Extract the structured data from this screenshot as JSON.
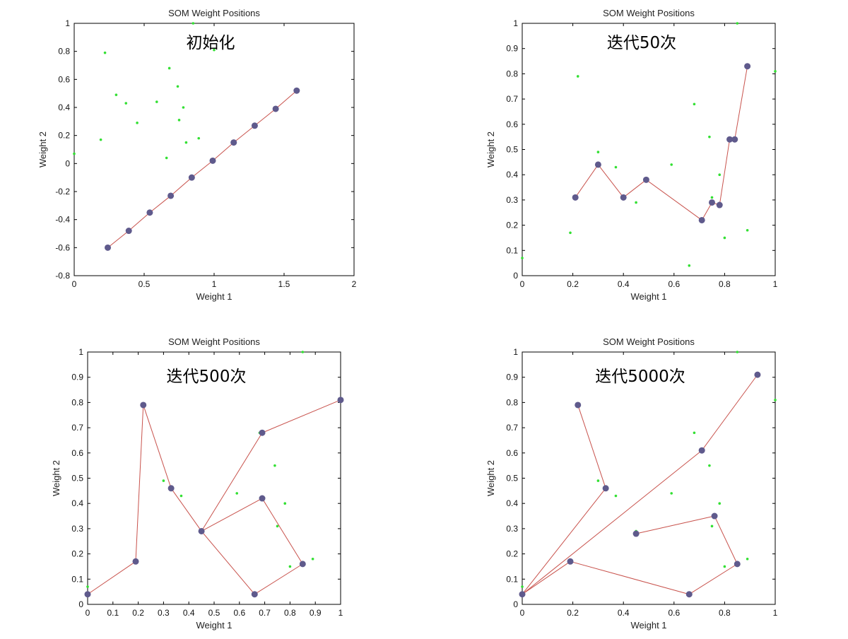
{
  "colors": {
    "node": "#5f5a8c",
    "edge": "#c8524c",
    "sample": "#33e033",
    "axis": "#000000"
  },
  "chart_data": [
    {
      "type": "scatter",
      "title": "SOM Weight Positions",
      "overlay_label": "初始化",
      "xlabel": "Weight 1",
      "ylabel": "Weight 2",
      "xlim": [
        0,
        2
      ],
      "ylim": [
        -0.8,
        1
      ],
      "xticks": [
        "0",
        "0.5",
        "1",
        "1.5",
        "2"
      ],
      "xtick_values": [
        0,
        0.5,
        1,
        1.5,
        2
      ],
      "yticks": [
        "-0.8",
        "-0.6",
        "-0.4",
        "-0.2",
        "0",
        "0.2",
        "0.4",
        "0.6",
        "0.8",
        "1"
      ],
      "ytick_values": [
        -0.8,
        -0.6,
        -0.4,
        -0.2,
        0,
        0.2,
        0.4,
        0.6,
        0.8,
        1
      ],
      "grid": false,
      "samples": [
        [
          0.22,
          0.79
        ],
        [
          0.3,
          0.49
        ],
        [
          0.37,
          0.43
        ],
        [
          0.45,
          0.29
        ],
        [
          0.59,
          0.44
        ],
        [
          0.68,
          0.68
        ],
        [
          0.74,
          0.55
        ],
        [
          0.75,
          0.31
        ],
        [
          0.78,
          0.4
        ],
        [
          0.8,
          0.15
        ],
        [
          0.89,
          0.18
        ],
        [
          0.66,
          0.04
        ],
        [
          0.19,
          0.17
        ],
        [
          0.0,
          0.07
        ],
        [
          0.85,
          1.0
        ],
        [
          1.0,
          0.81
        ]
      ],
      "nodes": [
        [
          0.24,
          -0.6
        ],
        [
          0.39,
          -0.48
        ],
        [
          0.54,
          -0.35
        ],
        [
          0.69,
          -0.23
        ],
        [
          0.84,
          -0.1
        ],
        [
          0.99,
          0.02
        ],
        [
          1.14,
          0.15
        ],
        [
          1.29,
          0.27
        ],
        [
          1.44,
          0.39
        ],
        [
          1.59,
          0.52
        ]
      ],
      "path": [
        [
          0,
          1
        ],
        [
          1,
          2
        ],
        [
          2,
          3
        ],
        [
          3,
          4
        ],
        [
          4,
          5
        ],
        [
          5,
          6
        ],
        [
          6,
          7
        ],
        [
          7,
          8
        ],
        [
          8,
          9
        ]
      ]
    },
    {
      "type": "scatter",
      "title": "SOM Weight Positions",
      "overlay_label": "迭代50次",
      "xlabel": "Weight 1",
      "ylabel": "Weight 2",
      "xlim": [
        0,
        1
      ],
      "ylim": [
        0,
        1
      ],
      "xticks": [
        "0",
        "0.2",
        "0.4",
        "0.6",
        "0.8",
        "1"
      ],
      "xtick_values": [
        0,
        0.2,
        0.4,
        0.6,
        0.8,
        1
      ],
      "yticks": [
        "0",
        "0.1",
        "0.2",
        "0.3",
        "0.4",
        "0.5",
        "0.6",
        "0.7",
        "0.8",
        "0.9",
        "1"
      ],
      "ytick_values": [
        0,
        0.1,
        0.2,
        0.3,
        0.4,
        0.5,
        0.6,
        0.7,
        0.8,
        0.9,
        1
      ],
      "grid": false,
      "samples": [
        [
          0.22,
          0.79
        ],
        [
          0.3,
          0.49
        ],
        [
          0.37,
          0.43
        ],
        [
          0.45,
          0.29
        ],
        [
          0.59,
          0.44
        ],
        [
          0.68,
          0.68
        ],
        [
          0.74,
          0.55
        ],
        [
          0.75,
          0.31
        ],
        [
          0.78,
          0.4
        ],
        [
          0.8,
          0.15
        ],
        [
          0.89,
          0.18
        ],
        [
          0.66,
          0.04
        ],
        [
          0.19,
          0.17
        ],
        [
          0.0,
          0.07
        ],
        [
          0.85,
          1.0
        ],
        [
          1.0,
          0.81
        ]
      ],
      "nodes": [
        [
          0.21,
          0.31
        ],
        [
          0.3,
          0.44
        ],
        [
          0.4,
          0.31
        ],
        [
          0.49,
          0.38
        ],
        [
          0.71,
          0.22
        ],
        [
          0.75,
          0.29
        ],
        [
          0.78,
          0.28
        ],
        [
          0.82,
          0.54
        ],
        [
          0.84,
          0.54
        ],
        [
          0.89,
          0.83
        ]
      ],
      "path": [
        [
          0,
          1
        ],
        [
          1,
          2
        ],
        [
          2,
          3
        ],
        [
          3,
          4
        ],
        [
          4,
          5
        ],
        [
          5,
          6
        ],
        [
          6,
          7
        ],
        [
          7,
          8
        ],
        [
          8,
          9
        ]
      ]
    },
    {
      "type": "scatter",
      "title": "SOM Weight Positions",
      "overlay_label": "迭代500次",
      "xlabel": "Weight 1",
      "ylabel": "Weight 2",
      "xlim": [
        0,
        1
      ],
      "ylim": [
        0,
        1
      ],
      "xticks": [
        "0",
        "0.1",
        "0.2",
        "0.3",
        "0.4",
        "0.5",
        "0.6",
        "0.7",
        "0.8",
        "0.9",
        "1"
      ],
      "xtick_values": [
        0,
        0.1,
        0.2,
        0.3,
        0.4,
        0.5,
        0.6,
        0.7,
        0.8,
        0.9,
        1
      ],
      "yticks": [
        "0",
        "0.1",
        "0.2",
        "0.3",
        "0.4",
        "0.5",
        "0.6",
        "0.7",
        "0.8",
        "0.9",
        "1"
      ],
      "ytick_values": [
        0,
        0.1,
        0.2,
        0.3,
        0.4,
        0.5,
        0.6,
        0.7,
        0.8,
        0.9,
        1
      ],
      "grid": false,
      "samples": [
        [
          0.22,
          0.79
        ],
        [
          0.3,
          0.49
        ],
        [
          0.37,
          0.43
        ],
        [
          0.45,
          0.29
        ],
        [
          0.59,
          0.44
        ],
        [
          0.68,
          0.68
        ],
        [
          0.74,
          0.55
        ],
        [
          0.75,
          0.31
        ],
        [
          0.78,
          0.4
        ],
        [
          0.8,
          0.15
        ],
        [
          0.89,
          0.18
        ],
        [
          0.66,
          0.04
        ],
        [
          0.19,
          0.17
        ],
        [
          0.0,
          0.07
        ],
        [
          0.85,
          1.0
        ],
        [
          1.0,
          0.81
        ]
      ],
      "nodes": [
        [
          0.0,
          0.04
        ],
        [
          0.19,
          0.17
        ],
        [
          0.22,
          0.79
        ],
        [
          0.33,
          0.46
        ],
        [
          0.45,
          0.29
        ],
        [
          0.66,
          0.04
        ],
        [
          0.85,
          0.16
        ],
        [
          0.69,
          0.42
        ],
        [
          0.69,
          0.68
        ],
        [
          1.0,
          0.81
        ]
      ],
      "path": [
        [
          0,
          1
        ],
        [
          1,
          2
        ],
        [
          2,
          3
        ],
        [
          3,
          4
        ],
        [
          4,
          5
        ],
        [
          5,
          6
        ],
        [
          6,
          7
        ],
        [
          7,
          4
        ],
        [
          4,
          8
        ],
        [
          8,
          9
        ]
      ]
    },
    {
      "type": "scatter",
      "title": "SOM Weight Positions",
      "overlay_label": "迭代5000次",
      "xlabel": "Weight 1",
      "ylabel": "Weight 2",
      "xlim": [
        0,
        1
      ],
      "ylim": [
        0,
        1
      ],
      "xticks": [
        "0",
        "0.2",
        "0.4",
        "0.6",
        "0.8",
        "1"
      ],
      "xtick_values": [
        0,
        0.2,
        0.4,
        0.6,
        0.8,
        1
      ],
      "yticks": [
        "0",
        "0.1",
        "0.2",
        "0.3",
        "0.4",
        "0.5",
        "0.6",
        "0.7",
        "0.8",
        "0.9",
        "1"
      ],
      "ytick_values": [
        0,
        0.1,
        0.2,
        0.3,
        0.4,
        0.5,
        0.6,
        0.7,
        0.8,
        0.9,
        1
      ],
      "grid": false,
      "samples": [
        [
          0.22,
          0.79
        ],
        [
          0.3,
          0.49
        ],
        [
          0.37,
          0.43
        ],
        [
          0.45,
          0.29
        ],
        [
          0.59,
          0.44
        ],
        [
          0.68,
          0.68
        ],
        [
          0.74,
          0.55
        ],
        [
          0.75,
          0.31
        ],
        [
          0.78,
          0.4
        ],
        [
          0.8,
          0.15
        ],
        [
          0.89,
          0.18
        ],
        [
          0.66,
          0.04
        ],
        [
          0.19,
          0.17
        ],
        [
          0.0,
          0.07
        ],
        [
          0.85,
          1.0
        ],
        [
          1.0,
          0.81
        ]
      ],
      "nodes": [
        [
          0.22,
          0.79
        ],
        [
          0.33,
          0.46
        ],
        [
          0.0,
          0.04
        ],
        [
          0.19,
          0.17
        ],
        [
          0.66,
          0.04
        ],
        [
          0.85,
          0.16
        ],
        [
          0.76,
          0.35
        ],
        [
          0.45,
          0.28
        ],
        [
          0.71,
          0.61
        ],
        [
          0.93,
          0.91
        ]
      ],
      "path": [
        [
          0,
          1
        ],
        [
          1,
          2
        ],
        [
          2,
          3
        ],
        [
          3,
          4
        ],
        [
          4,
          5
        ],
        [
          5,
          6
        ],
        [
          6,
          7
        ],
        [
          2,
          8
        ],
        [
          8,
          9
        ]
      ]
    }
  ]
}
